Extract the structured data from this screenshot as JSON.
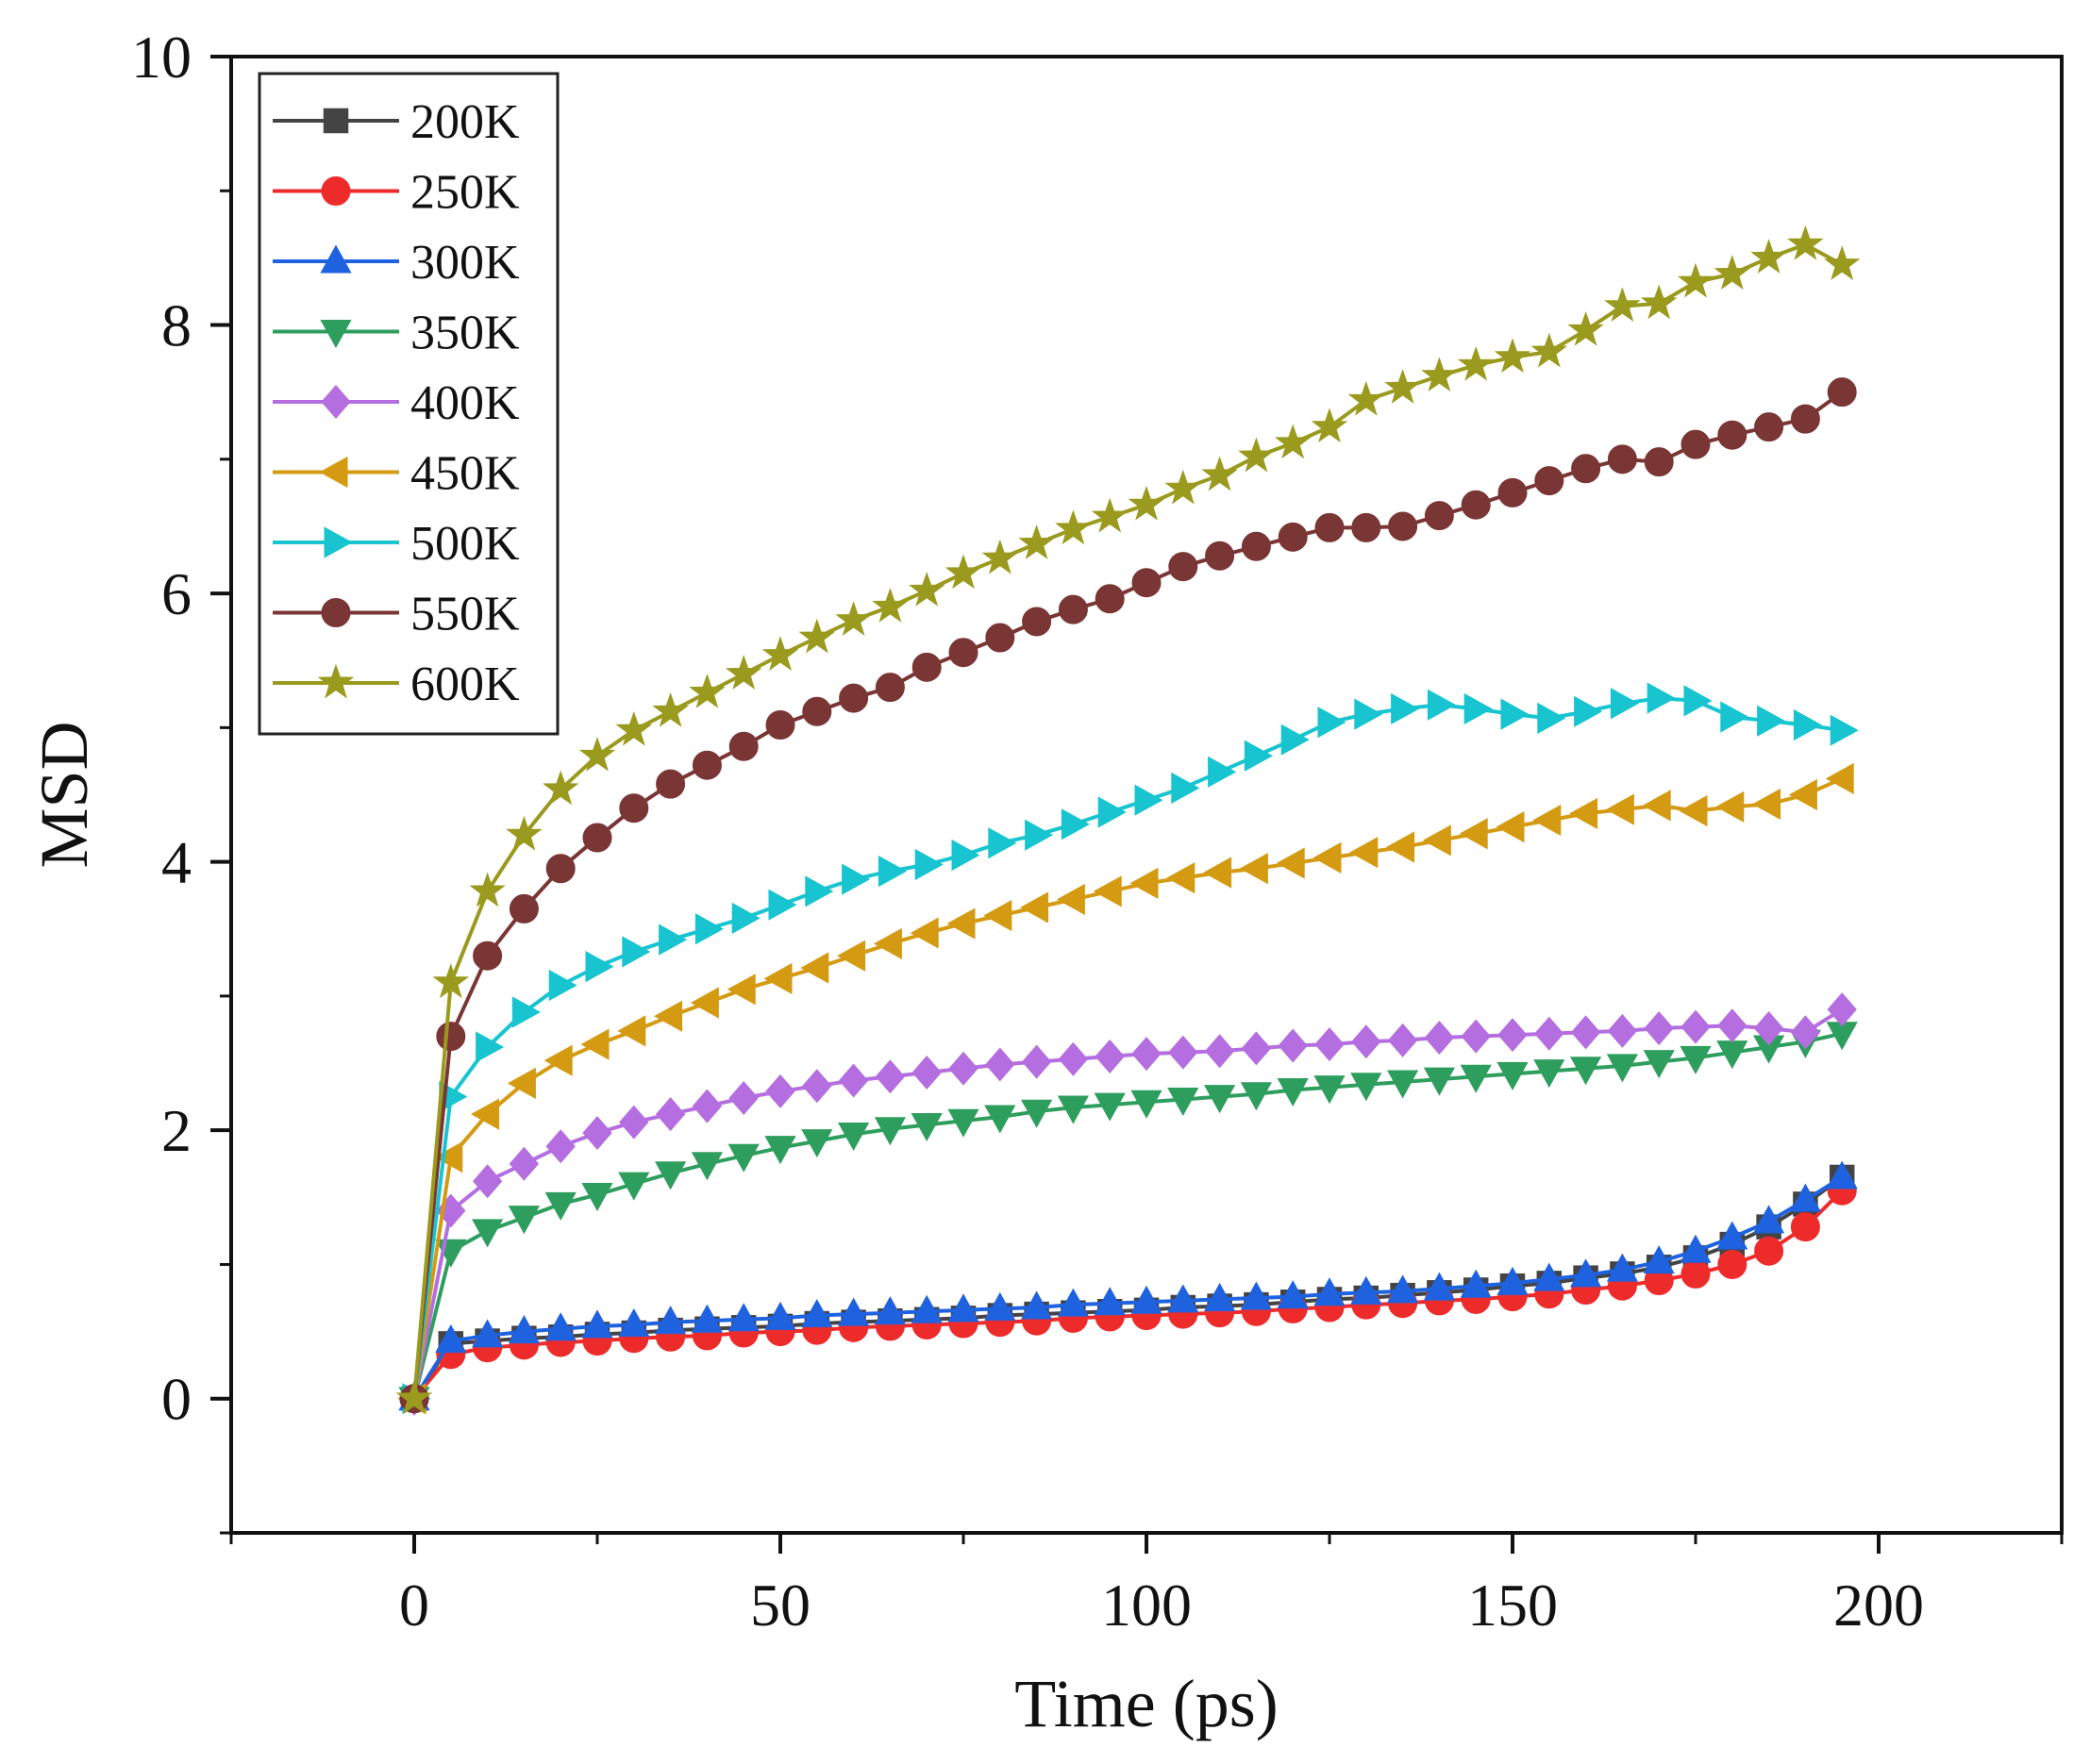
{
  "chart_data": {
    "type": "line",
    "title": "",
    "xlabel": "Time (ps)",
    "ylabel": "MSD",
    "xlim": [
      -25,
      225
    ],
    "ylim": [
      -1,
      10
    ],
    "xticks": [
      0,
      50,
      100,
      150,
      200
    ],
    "yticks": [
      0,
      2,
      4,
      6,
      8,
      10
    ],
    "x_tick_labels": [
      "0",
      "50",
      "100",
      "150",
      "200"
    ],
    "y_tick_labels": [
      "0",
      "2",
      "4",
      "6",
      "8",
      "10"
    ],
    "grid": false,
    "legend_position": "top-left",
    "x": [
      0,
      5,
      10,
      15,
      20,
      25,
      30,
      35,
      40,
      45,
      50,
      55,
      60,
      65,
      70,
      75,
      80,
      85,
      90,
      95,
      100,
      105,
      110,
      115,
      120,
      125,
      130,
      135,
      140,
      145,
      150,
      155,
      160,
      165,
      170,
      175,
      180,
      185,
      190,
      195
    ],
    "series": [
      {
        "name": "200K",
        "color": "#444444",
        "marker": "square",
        "values": [
          0,
          0.41,
          0.43,
          0.45,
          0.46,
          0.48,
          0.49,
          0.51,
          0.52,
          0.53,
          0.54,
          0.56,
          0.57,
          0.58,
          0.59,
          0.6,
          0.62,
          0.63,
          0.64,
          0.65,
          0.66,
          0.68,
          0.69,
          0.7,
          0.72,
          0.74,
          0.75,
          0.77,
          0.79,
          0.81,
          0.84,
          0.86,
          0.9,
          0.93,
          0.98,
          1.05,
          1.15,
          1.28,
          1.45,
          1.65
        ]
      },
      {
        "name": "250K",
        "color": "#ee2b2b",
        "marker": "circle",
        "values": [
          0,
          0.33,
          0.38,
          0.4,
          0.42,
          0.43,
          0.45,
          0.46,
          0.47,
          0.49,
          0.5,
          0.51,
          0.53,
          0.54,
          0.55,
          0.56,
          0.57,
          0.58,
          0.6,
          0.61,
          0.62,
          0.63,
          0.64,
          0.65,
          0.67,
          0.68,
          0.7,
          0.71,
          0.73,
          0.74,
          0.76,
          0.78,
          0.81,
          0.84,
          0.88,
          0.93,
          1.0,
          1.1,
          1.28,
          1.55
        ]
      },
      {
        "name": "300K",
        "color": "#1f62e0",
        "marker": "triangle-up",
        "values": [
          0,
          0.43,
          0.47,
          0.5,
          0.52,
          0.54,
          0.55,
          0.57,
          0.58,
          0.59,
          0.6,
          0.62,
          0.63,
          0.64,
          0.65,
          0.66,
          0.67,
          0.68,
          0.7,
          0.71,
          0.72,
          0.73,
          0.74,
          0.75,
          0.76,
          0.78,
          0.79,
          0.8,
          0.82,
          0.84,
          0.86,
          0.89,
          0.92,
          0.96,
          1.02,
          1.1,
          1.2,
          1.32,
          1.48,
          1.65
        ]
      },
      {
        "name": "350K",
        "color": "#2e9e5e",
        "marker": "triangle-down",
        "values": [
          0,
          1.1,
          1.25,
          1.35,
          1.45,
          1.52,
          1.6,
          1.68,
          1.75,
          1.81,
          1.87,
          1.92,
          1.97,
          2.01,
          2.04,
          2.07,
          2.1,
          2.14,
          2.17,
          2.19,
          2.21,
          2.23,
          2.25,
          2.27,
          2.3,
          2.32,
          2.34,
          2.36,
          2.38,
          2.4,
          2.42,
          2.44,
          2.46,
          2.48,
          2.51,
          2.54,
          2.58,
          2.62,
          2.66,
          2.72
        ]
      },
      {
        "name": "400K",
        "color": "#b46ee0",
        "marker": "diamond",
        "values": [
          0,
          1.4,
          1.62,
          1.75,
          1.88,
          1.98,
          2.06,
          2.12,
          2.18,
          2.24,
          2.29,
          2.33,
          2.37,
          2.4,
          2.43,
          2.46,
          2.49,
          2.51,
          2.53,
          2.55,
          2.57,
          2.58,
          2.59,
          2.61,
          2.63,
          2.64,
          2.66,
          2.67,
          2.69,
          2.7,
          2.71,
          2.72,
          2.73,
          2.74,
          2.76,
          2.77,
          2.78,
          2.76,
          2.73,
          2.9
        ]
      },
      {
        "name": "450K",
        "color": "#d49a12",
        "marker": "triangle-left",
        "values": [
          0,
          1.8,
          2.12,
          2.35,
          2.52,
          2.64,
          2.74,
          2.85,
          2.95,
          3.05,
          3.13,
          3.21,
          3.3,
          3.39,
          3.47,
          3.54,
          3.6,
          3.66,
          3.72,
          3.78,
          3.84,
          3.88,
          3.92,
          3.95,
          3.99,
          4.03,
          4.07,
          4.11,
          4.16,
          4.21,
          4.26,
          4.31,
          4.36,
          4.39,
          4.42,
          4.38,
          4.41,
          4.43,
          4.5,
          4.62
        ]
      },
      {
        "name": "500K",
        "color": "#17c4cf",
        "marker": "triangle-right",
        "values": [
          0,
          2.25,
          2.62,
          2.88,
          3.08,
          3.22,
          3.33,
          3.42,
          3.5,
          3.58,
          3.68,
          3.78,
          3.87,
          3.93,
          3.98,
          4.05,
          4.14,
          4.2,
          4.28,
          4.37,
          4.46,
          4.55,
          4.67,
          4.79,
          4.91,
          5.04,
          5.1,
          5.14,
          5.17,
          5.14,
          5.1,
          5.07,
          5.12,
          5.18,
          5.22,
          5.2,
          5.08,
          5.05,
          5.02,
          4.98
        ]
      },
      {
        "name": "550K",
        "color": "#7a3535",
        "marker": "circle",
        "values": [
          0,
          2.7,
          3.3,
          3.65,
          3.95,
          4.18,
          4.4,
          4.58,
          4.72,
          4.86,
          5.02,
          5.12,
          5.22,
          5.3,
          5.45,
          5.56,
          5.67,
          5.79,
          5.88,
          5.96,
          6.08,
          6.2,
          6.28,
          6.35,
          6.42,
          6.49,
          6.49,
          6.5,
          6.58,
          6.66,
          6.75,
          6.84,
          6.93,
          7.0,
          6.98,
          7.11,
          7.18,
          7.24,
          7.3,
          7.5
        ]
      },
      {
        "name": "600K",
        "color": "#9a9a1e",
        "marker": "star",
        "values": [
          0,
          3.1,
          3.78,
          4.2,
          4.54,
          4.79,
          4.98,
          5.12,
          5.26,
          5.4,
          5.54,
          5.67,
          5.8,
          5.9,
          6.02,
          6.15,
          6.26,
          6.37,
          6.48,
          6.57,
          6.66,
          6.78,
          6.88,
          7.02,
          7.12,
          7.24,
          7.44,
          7.53,
          7.62,
          7.7,
          7.76,
          7.8,
          7.96,
          8.14,
          8.16,
          8.32,
          8.38,
          8.5,
          8.6,
          8.45
        ]
      }
    ]
  }
}
